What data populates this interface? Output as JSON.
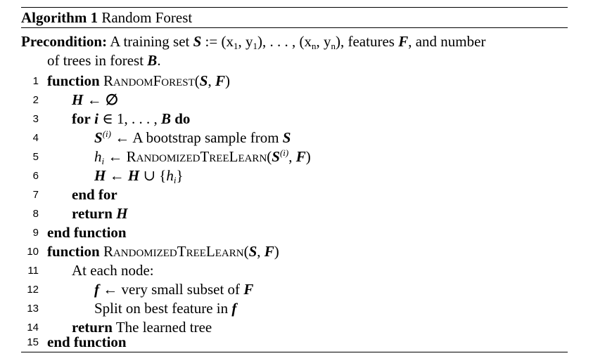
{
  "caption": {
    "label": "Algorithm 1",
    "title": "Random Forest"
  },
  "precondition": {
    "label": "Precondition:",
    "text_a": "A training set",
    "S": "S",
    "assign": ":=",
    "tuple_start": "(x",
    "sub1": "1",
    "comma_y": ", y",
    "sub1b": "1",
    "mid": "), . . . , (x",
    "subn": "n",
    "comma_yn": ", y",
    "subnb": "n",
    "end": "),",
    "text_b": "features",
    "F": "F",
    "text_c": ", and number",
    "text_d": "of trees in forest",
    "B": "B",
    "period": "."
  },
  "lines": {
    "l1": {
      "num": "1",
      "kw": "function",
      "fn": "RandomForest",
      "args_open": "(",
      "S": "S",
      "sep": ", ",
      "F": "F",
      "args_close": ")"
    },
    "l2": {
      "num": "2",
      "lhs": "H",
      "arrow": "←",
      "rhs": "∅"
    },
    "l3": {
      "num": "3",
      "kw": "for",
      "var": "i",
      "in": "∈ 1, . . . ,",
      "B": "B",
      "kw2": "do"
    },
    "l4": {
      "num": "4",
      "S": "S",
      "sup": "(i)",
      "arrow": "←",
      "text": "A bootstrap sample from",
      "S2": "S"
    },
    "l5": {
      "num": "5",
      "h": "h",
      "sub": "i",
      "arrow": "←",
      "fn": "RandomizedTreeLearn",
      "open": "(",
      "S": "S",
      "sup": "(i)",
      "sep": ", ",
      "F": "F",
      "close": ")"
    },
    "l6": {
      "num": "6",
      "H": "H",
      "arrow": "←",
      "H2": "H",
      "union": "∪ {",
      "h": "h",
      "sub": "i",
      "close": "}"
    },
    "l7": {
      "num": "7",
      "kw": "end for"
    },
    "l8": {
      "num": "8",
      "kw": "return",
      "val": "H"
    },
    "l9": {
      "num": "9",
      "kw": "end function"
    },
    "l10": {
      "num": "10",
      "kw": "function",
      "fn": "RandomizedTreeLearn",
      "args_open": "(",
      "S": "S",
      "sep": ", ",
      "F": "F",
      "args_close": ")"
    },
    "l11": {
      "num": "11",
      "text": "At each node:"
    },
    "l12": {
      "num": "12",
      "f": "f",
      "arrow": "←",
      "text": "very small subset of",
      "F": "F"
    },
    "l13": {
      "num": "13",
      "text": "Split on best feature in",
      "f": "f"
    },
    "l14": {
      "num": "14",
      "kw": "return",
      "text": "The learned tree"
    },
    "l15": {
      "num": "15",
      "kw": "end function"
    }
  }
}
